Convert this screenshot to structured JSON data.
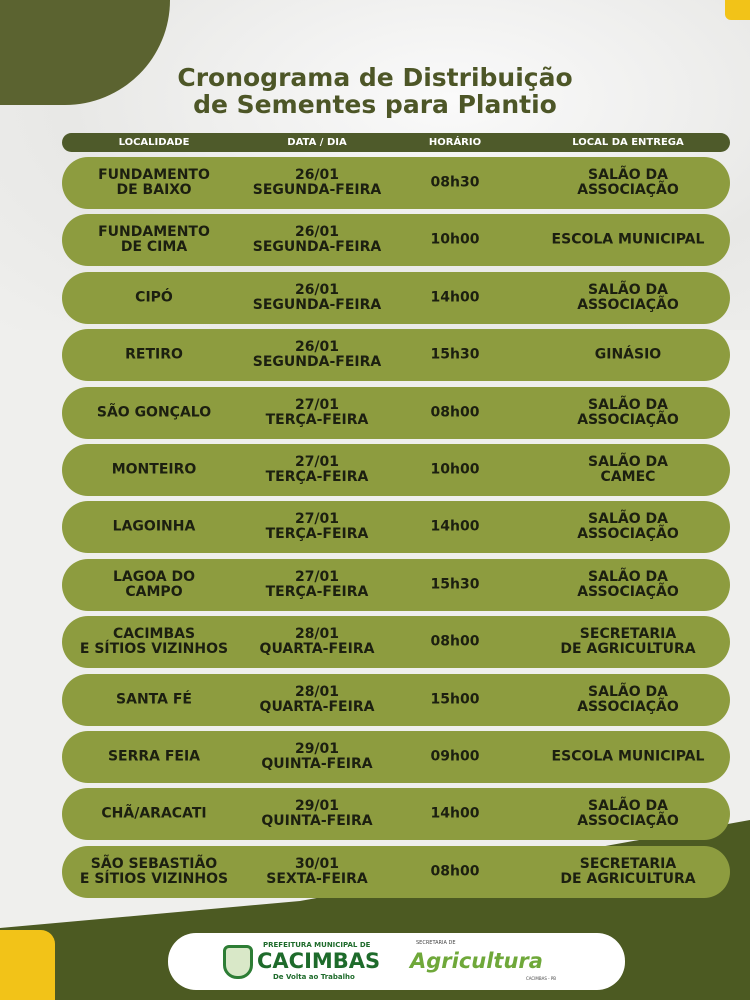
{
  "title": [
    "Cronograma de Distribuição",
    "de Sementes para Plantio"
  ],
  "columns": [
    "LOCALIDADE",
    "DATA / DIA",
    "HORÁRIO",
    "LOCAL DA ENTREGA"
  ],
  "rows": [
    {
      "localidade": "FUNDAMENTO\nDE BAIXO",
      "data": "26/01\nSEGUNDA-FEIRA",
      "horario": "08h30",
      "local": "SALÃO DA\nASSOCIAÇÃO"
    },
    {
      "localidade": "FUNDAMENTO\nDE CIMA",
      "data": "26/01\nSEGUNDA-FEIRA",
      "horario": "10h00",
      "local": "ESCOLA MUNICIPAL"
    },
    {
      "localidade": "CIPÓ",
      "data": "26/01\nSEGUNDA-FEIRA",
      "horario": "14h00",
      "local": "SALÃO DA\nASSOCIAÇÃO"
    },
    {
      "localidade": "RETIRO",
      "data": "26/01\nSEGUNDA-FEIRA",
      "horario": "15h30",
      "local": "GINÁSIO"
    },
    {
      "localidade": "SÃO GONÇALO",
      "data": "27/01\nTERÇA-FEIRA",
      "horario": "08h00",
      "local": "SALÃO DA\nASSOCIAÇÃO"
    },
    {
      "localidade": "MONTEIRO",
      "data": "27/01\nTERÇA-FEIRA",
      "horario": "10h00",
      "local": "SALÃO DA\nCAMEC"
    },
    {
      "localidade": "LAGOINHA",
      "data": "27/01\nTERÇA-FEIRA",
      "horario": "14h00",
      "local": "SALÃO DA\nASSOCIAÇÃO"
    },
    {
      "localidade": "LAGOA DO\nCAMPO",
      "data": "27/01\nTERÇA-FEIRA",
      "horario": "15h30",
      "local": "SALÃO DA\nASSOCIAÇÃO"
    },
    {
      "localidade": "CACIMBAS\nE SÍTIOS VIZINHOS",
      "data": "28/01\nQUARTA-FEIRA",
      "horario": "08h00",
      "local": "SECRETARIA\nDE AGRICULTURA"
    },
    {
      "localidade": "SANTA FÉ",
      "data": "28/01\nQUARTA-FEIRA",
      "horario": "15h00",
      "local": "SALÃO DA\nASSOCIAÇÃO"
    },
    {
      "localidade": "SERRA FEIA",
      "data": "29/01\nQUINTA-FEIRA",
      "horario": "09h00",
      "local": "ESCOLA MUNICIPAL"
    },
    {
      "localidade": "CHÃ/ARACATI",
      "data": "29/01\nQUINTA-FEIRA",
      "horario": "14h00",
      "local": "SALÃO DA\nASSOCIAÇÃO"
    },
    {
      "localidade": "SÃO SEBASTIÃO\nE SÍTIOS VIZINHOS",
      "data": "30/01\nSEXTA-FEIRA",
      "horario": "08h00",
      "local": "SECRETARIA\nDE AGRICULTURA"
    }
  ],
  "footer": {
    "logo1": {
      "small": "PREFEITURA MUNICIPAL DE",
      "big": "CACIMBAS",
      "tagline": "De Volta ao Trabalho"
    },
    "logo2": {
      "small": "SECRETARIA DE",
      "big": "Agricultura",
      "city": "CACIMBAS - PB"
    }
  },
  "colors": {
    "dark_olive": "#4e5a2a",
    "row_green": "#8d9c3f",
    "title": "#4d5627"
  }
}
